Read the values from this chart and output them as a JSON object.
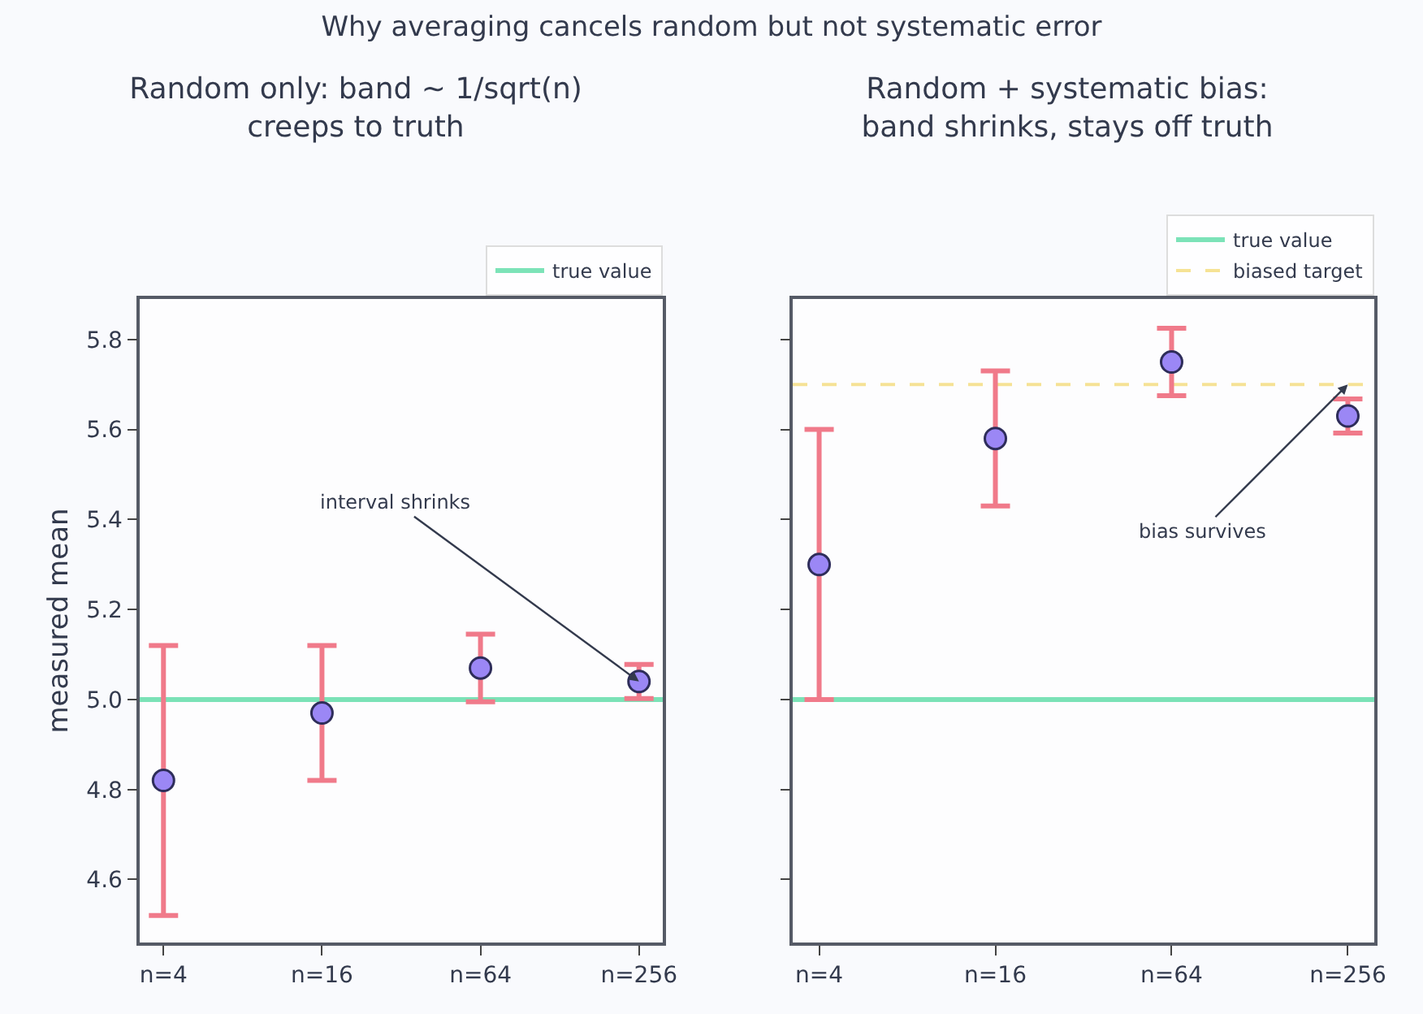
{
  "chart_data": [
    {
      "type": "scatter",
      "title": "Random only: band ~ 1/sqrt(n)\ncreeps to truth",
      "ylabel": "measured mean",
      "categories": [
        "n=4",
        "n=16",
        "n=64",
        "n=256"
      ],
      "series": [
        {
          "color": "#9b87f5",
          "values": [
            4.82,
            4.97,
            5.07,
            5.04
          ],
          "errors": [
            0.3,
            0.15,
            0.075,
            0.038
          ]
        }
      ],
      "ref_lines": [
        {
          "axis": "y",
          "value": 5.0,
          "label": "true value",
          "color": "#6ee0b0",
          "line_style": "solid"
        }
      ],
      "annotations": [
        "Why averaging cancels random but not systematic error",
        {
          "text": "interval shrinks",
          "x": "n=256",
          "y": 5.04
        }
      ],
      "ylim": [
        4.46,
        5.89
      ],
      "yticks": [
        {
          "value": 4.6,
          "label": "4.6"
        },
        {
          "value": 4.8,
          "label": "4.8"
        },
        {
          "value": 5.0,
          "label": "5.0"
        },
        {
          "value": 5.2,
          "label": "5.2"
        },
        {
          "value": 5.4,
          "label": "5.4"
        },
        {
          "value": 5.6,
          "label": "5.6"
        },
        {
          "value": 5.8,
          "label": "5.8"
        }
      ],
      "legend": "top right",
      "grid": false,
      "marker": "circle"
    },
    {
      "type": "scatter",
      "title": "Random + systematic bias:\nband shrinks, stays off truth",
      "categories": [
        "n=4",
        "n=16",
        "n=64",
        "n=256"
      ],
      "series": [
        {
          "color": "#9b87f5",
          "values": [
            5.3,
            5.58,
            5.75,
            5.63
          ],
          "errors": [
            0.3,
            0.15,
            0.075,
            0.038
          ]
        }
      ],
      "ref_lines": [
        {
          "axis": "y",
          "value": 5.0,
          "label": "true value",
          "color": "#6ee0b0",
          "line_style": "solid"
        },
        {
          "axis": "y",
          "value": 5.7,
          "label": "biased target",
          "color": "#f5e08a",
          "line_style": "dashed"
        }
      ],
      "annotations": [
        {
          "text": "bias survives",
          "x": "n=256",
          "y": 5.7
        }
      ],
      "ylim": [
        4.46,
        5.89
      ],
      "yticks": [
        {
          "value": 4.6,
          "label": null
        },
        {
          "value": 4.8,
          "label": null
        },
        {
          "value": 5.0,
          "label": null
        },
        {
          "value": 5.2,
          "label": null
        },
        {
          "value": 5.4,
          "label": null
        },
        {
          "value": 5.6,
          "label": null
        },
        {
          "value": 5.8,
          "label": null
        }
      ],
      "tick_labels": "x",
      "legend": "top right",
      "grid": false,
      "marker": "circle"
    }
  ]
}
